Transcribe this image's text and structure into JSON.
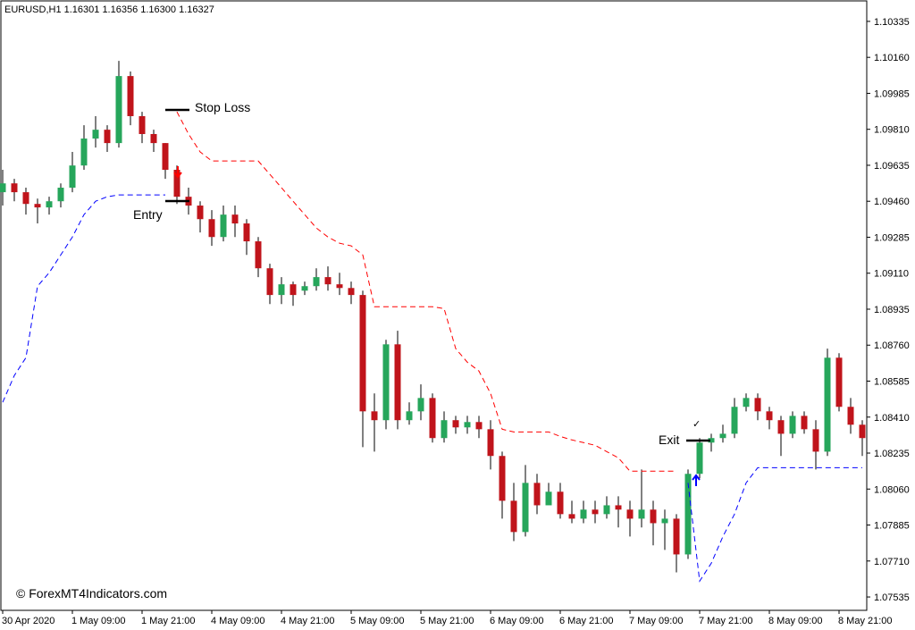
{
  "chart_data": {
    "type": "candlestick",
    "title": "EURUSD,H1  1.16301 1.16356 1.16300 1.16327",
    "watermark": "© ForexMT4Indicators.com",
    "annotations": [
      "Stop Loss",
      "Entry",
      "Exit",
      "✓"
    ],
    "up_color": "#26a65b",
    "down_color": "#c0141b",
    "categories": [
      "30 Apr 2020",
      null,
      null,
      null,
      null,
      null,
      "1 May 09:00",
      null,
      null,
      null,
      null,
      null,
      "1 May 21:00",
      null,
      null,
      null,
      null,
      null,
      "4 May 09:00",
      null,
      null,
      null,
      null,
      null,
      "4 May 21:00",
      null,
      null,
      null,
      null,
      null,
      "5 May 09:00",
      null,
      null,
      null,
      null,
      null,
      "5 May 21:00",
      null,
      null,
      null,
      null,
      null,
      "6 May 09:00",
      null,
      null,
      null,
      null,
      null,
      "6 May 21:00",
      null,
      null,
      null,
      null,
      null,
      "7 May 09:00",
      null,
      null,
      null,
      null,
      null,
      "7 May 21:00",
      null,
      null,
      null,
      null,
      null,
      "8 May 09:00",
      null,
      null,
      null,
      null,
      null,
      "8 May 21:00",
      null,
      null
    ],
    "open": [
      1.09504,
      1.09547,
      1.09504,
      1.09447,
      1.0943,
      1.0946,
      1.09526,
      1.09634,
      1.09765,
      1.09808,
      1.09743,
      1.10069,
      1.09874,
      1.09787,
      1.09743,
      1.09613,
      1.09482,
      1.09439,
      1.09373,
      1.09286,
      1.09395,
      1.09352,
      1.09265,
      1.09134,
      1.09004,
      1.09056,
      1.09025,
      1.09047,
      1.09091,
      1.09056,
      1.09038,
      1.09004,
      1.08438,
      1.08395,
      1.08764,
      1.08395,
      1.08438,
      1.08503,
      1.08308,
      1.08395,
      1.0836,
      1.08386,
      1.08351,
      1.08221,
      1.08003,
      1.07851,
      1.0809,
      1.07981,
      1.08047,
      1.07938,
      1.07916,
      1.0796,
      1.07938,
      1.07981,
      1.0796,
      1.07916,
      1.0796,
      1.07894,
      1.07916,
      1.07742,
      1.08134,
      1.08286,
      1.08308,
      1.08329,
      1.0846,
      1.08503,
      1.08438,
      1.08395,
      1.08329,
      1.08416,
      1.08351,
      1.08242,
      1.08699,
      1.0846,
      1.08373
    ],
    "high": [
      1.09613,
      1.09569,
      1.09526,
      1.09473,
      1.09482,
      1.09547,
      1.097,
      1.0983,
      1.09874,
      1.0983,
      1.10143,
      1.10091,
      1.09895,
      1.09808,
      1.09743,
      1.09634,
      1.09526,
      1.0946,
      1.09417,
      1.09439,
      1.09439,
      1.09373,
      1.09286,
      1.09156,
      1.09091,
      1.09069,
      1.09069,
      1.09134,
      1.09143,
      1.09112,
      1.09069,
      1.09025,
      1.08525,
      1.08786,
      1.0883,
      1.08482,
      1.08569,
      1.08525,
      1.08438,
      1.08416,
      1.08416,
      1.08416,
      1.08395,
      1.08242,
      1.0809,
      1.08177,
      1.08134,
      1.0809,
      1.0809,
      1.08003,
      1.08003,
      1.08003,
      1.08025,
      1.08025,
      1.08003,
      1.08155,
      1.08003,
      1.0796,
      1.07938,
      1.08155,
      1.08308,
      1.08329,
      1.08373,
      1.08503,
      1.08525,
      1.08525,
      1.0846,
      1.08416,
      1.08438,
      1.08438,
      1.08395,
      1.08743,
      1.08721,
      1.08503,
      1.08395
    ],
    "low": [
      1.09439,
      1.0946,
      1.09395,
      1.09352,
      1.09395,
      1.0943,
      1.09504,
      1.09613,
      1.09721,
      1.097,
      1.09721,
      1.0983,
      1.09743,
      1.097,
      1.09569,
      1.09447,
      1.09395,
      1.09308,
      1.09243,
      1.09265,
      1.09286,
      1.09199,
      1.09091,
      1.0896,
      1.0896,
      1.08951,
      1.09004,
      1.09025,
      1.09025,
      1.09004,
      1.0896,
      1.08264,
      1.08242,
      1.08351,
      1.08351,
      1.08373,
      1.08395,
      1.08286,
      1.08286,
      1.08329,
      1.08329,
      1.08308,
      1.08155,
      1.07916,
      1.07807,
      1.07829,
      1.07938,
      1.08003,
      1.07916,
      1.07894,
      1.07894,
      1.07894,
      1.07916,
      1.07873,
      1.07829,
      1.07873,
      1.07786,
      1.07764,
      1.07655,
      1.0772,
      1.08112,
      1.08242,
      1.08286,
      1.08308,
      1.08438,
      1.08395,
      1.08351,
      1.08221,
      1.08308,
      1.08329,
      1.08155,
      1.08221,
      1.08438,
      1.08329,
      1.08221
    ],
    "close": [
      1.09547,
      1.09504,
      1.09447,
      1.0943,
      1.0946,
      1.09526,
      1.09634,
      1.09765,
      1.09808,
      1.09743,
      1.10069,
      1.09874,
      1.09787,
      1.09743,
      1.09613,
      1.09482,
      1.09439,
      1.09373,
      1.09286,
      1.09395,
      1.09352,
      1.09265,
      1.09134,
      1.09004,
      1.09056,
      1.09004,
      1.09047,
      1.09091,
      1.09056,
      1.09038,
      1.09004,
      1.08438,
      1.08395,
      1.08764,
      1.08395,
      1.08438,
      1.08503,
      1.08308,
      1.08395,
      1.0836,
      1.08386,
      1.08351,
      1.08221,
      1.08003,
      1.07851,
      1.0809,
      1.07981,
      1.08047,
      1.07938,
      1.07916,
      1.0796,
      1.07938,
      1.07981,
      1.0796,
      1.07916,
      1.0796,
      1.07894,
      1.07916,
      1.07742,
      1.08134,
      1.08286,
      1.08308,
      1.08329,
      1.0846,
      1.08503,
      1.08438,
      1.08395,
      1.08329,
      1.08416,
      1.08351,
      1.08242,
      1.08699,
      1.0846,
      1.08373,
      1.08308
    ],
    "series": [
      {
        "color": "#ff0000",
        "values": [
          null,
          null,
          null,
          null,
          null,
          null,
          null,
          null,
          null,
          null,
          null,
          null,
          null,
          null,
          null,
          1.09895,
          1.09787,
          1.097,
          1.09656,
          1.09656,
          1.09656,
          1.09656,
          1.09656,
          1.09591,
          1.09526,
          1.0946,
          1.09395,
          1.0933,
          1.09286,
          1.09256,
          1.09243,
          1.09199,
          1.08947,
          1.08947,
          1.08947,
          1.08947,
          1.08947,
          1.08947,
          1.08938,
          1.08743,
          1.08677,
          1.08634,
          1.08525,
          1.08351,
          1.08338,
          1.08338,
          1.08338,
          1.08338,
          1.08316,
          1.08299,
          1.08286,
          1.08273,
          1.08242,
          1.08212,
          1.08147,
          1.08147,
          1.08147,
          1.08147,
          1.08147,
          null,
          null,
          null,
          null,
          null,
          null,
          null,
          null,
          null,
          null,
          null,
          null,
          null,
          null,
          null,
          null
        ]
      },
      {
        "color": "#0000ff",
        "values": [
          1.08482,
          1.08612,
          1.08699,
          1.09047,
          1.09112,
          1.09199,
          1.09286,
          1.09395,
          1.0946,
          1.09482,
          1.09491,
          1.09491,
          1.09491,
          1.09491,
          1.09491,
          null,
          null,
          null,
          null,
          null,
          null,
          null,
          null,
          null,
          null,
          null,
          null,
          null,
          null,
          null,
          null,
          null,
          null,
          null,
          null,
          null,
          null,
          null,
          null,
          null,
          null,
          null,
          null,
          null,
          null,
          null,
          null,
          null,
          null,
          null,
          null,
          null,
          null,
          null,
          null,
          null,
          null,
          null,
          null,
          1.0809,
          1.07612,
          1.07699,
          1.07829,
          1.07938,
          1.0809,
          1.08164,
          1.08164,
          1.08164,
          1.08164,
          1.08164,
          1.08164,
          1.08164,
          1.08164,
          1.08164,
          1.08164
        ]
      }
    ],
    "ylim": [
      1.0747,
      1.10439
    ],
    "yticks": [
      {
        "value": 1.10335,
        "label": "1.10335"
      },
      {
        "value": 1.1016,
        "label": "1.10160"
      },
      {
        "value": 1.09985,
        "label": "1.09985"
      },
      {
        "value": 1.0981,
        "label": "1.09810"
      },
      {
        "value": 1.09635,
        "label": "1.09635"
      },
      {
        "value": 1.0946,
        "label": "1.09460"
      },
      {
        "value": 1.09285,
        "label": "1.09285"
      },
      {
        "value": 1.0911,
        "label": "1.09110"
      },
      {
        "value": 1.08935,
        "label": "1.08935"
      },
      {
        "value": 1.0876,
        "label": "1.08760"
      },
      {
        "value": 1.08585,
        "label": "1.08585"
      },
      {
        "value": 1.0841,
        "label": "1.08410"
      },
      {
        "value": 1.08235,
        "label": "1.08235"
      },
      {
        "value": 1.0806,
        "label": "1.08060"
      },
      {
        "value": 1.07885,
        "label": "1.07885"
      },
      {
        "value": 1.0771,
        "label": "1.07710"
      },
      {
        "value": 1.07535,
        "label": "1.07535"
      }
    ]
  }
}
